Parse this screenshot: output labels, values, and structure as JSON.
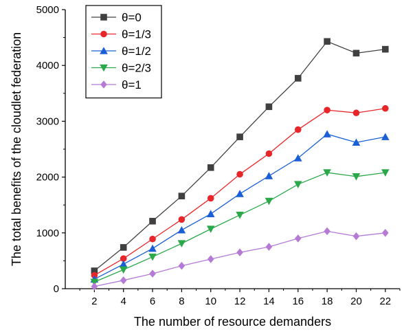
{
  "chart_data": {
    "type": "line",
    "title": "",
    "xlabel": "The number of resource demanders",
    "ylabel": "The total benefits of the cloudlet federation",
    "x": [
      2,
      4,
      6,
      8,
      10,
      12,
      14,
      16,
      18,
      20,
      22
    ],
    "x_ticks": [
      2,
      4,
      6,
      8,
      10,
      12,
      14,
      16,
      18,
      20,
      22
    ],
    "xlim": [
      0,
      23
    ],
    "y_ticks": [
      0,
      1000,
      2000,
      3000,
      4000,
      5000
    ],
    "ylim": [
      0,
      5000
    ],
    "grid": false,
    "legend_position": "top-left",
    "series": [
      {
        "name": "θ=0",
        "color": "#404040",
        "marker": "square",
        "values": [
          320,
          740,
          1210,
          1660,
          2170,
          2720,
          3260,
          3770,
          4430,
          4220,
          4290
        ]
      },
      {
        "name": "θ=1/3",
        "color": "#e8262a",
        "marker": "circle",
        "values": [
          240,
          540,
          890,
          1240,
          1620,
          2050,
          2420,
          2850,
          3200,
          3150,
          3230
        ]
      },
      {
        "name": "θ=1/2",
        "color": "#1a5fd6",
        "marker": "triangle-up",
        "values": [
          170,
          440,
          720,
          1050,
          1340,
          1700,
          2020,
          2340,
          2770,
          2620,
          2720
        ]
      },
      {
        "name": "θ=2/3",
        "color": "#2aa84a",
        "marker": "triangle-down",
        "values": [
          120,
          340,
          570,
          810,
          1070,
          1320,
          1570,
          1870,
          2080,
          2010,
          2080
        ]
      },
      {
        "name": "θ=1",
        "color": "#b57ad6",
        "marker": "diamond",
        "values": [
          40,
          150,
          270,
          410,
          530,
          650,
          750,
          900,
          1030,
          940,
          1000
        ]
      }
    ]
  }
}
